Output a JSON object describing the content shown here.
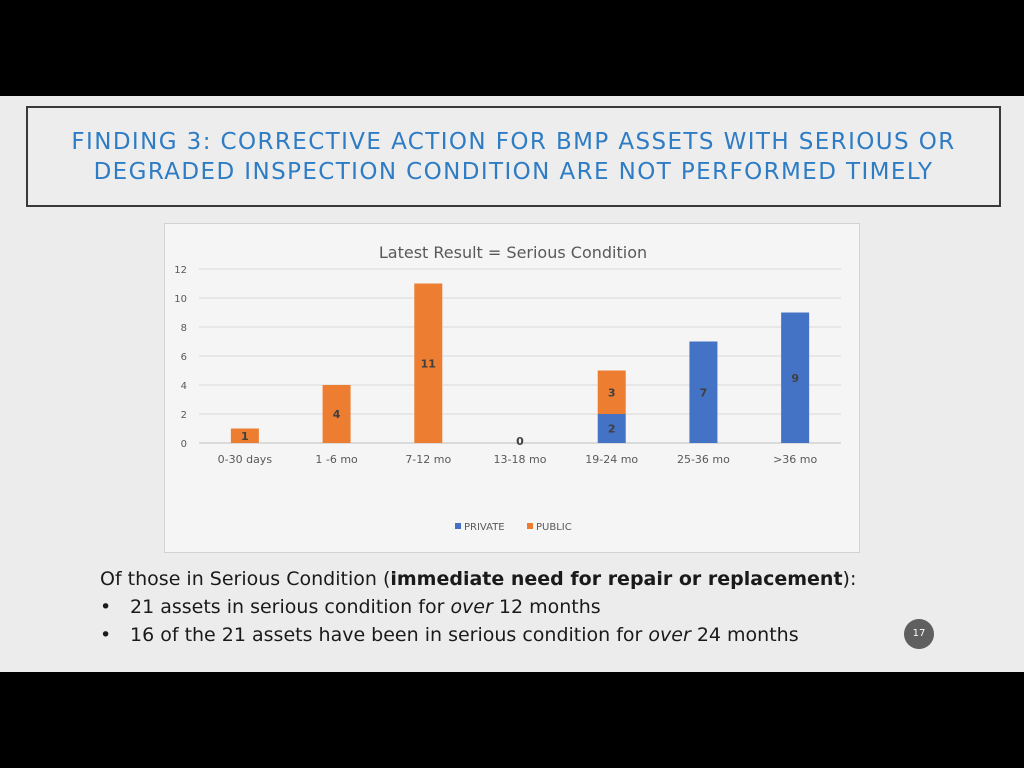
{
  "slide": {
    "title_line1": "FINDING 3:  CORRECTIVE ACTION FOR BMP ASSETS WITH SERIOUS OR",
    "title_line2": "DEGRADED INSPECTION CONDITION ARE NOT PERFORMED TIMELY",
    "summary_lead_pre": "Of those in Serious Condition (",
    "summary_lead_bold": "immediate need for repair or replacement",
    "summary_lead_post": "):",
    "bullet1_pre": "21 assets in serious condition for ",
    "bullet1_em": "over",
    "bullet1_post": " 12 months",
    "bullet2_pre": "16 of the 21 assets have been in serious condition for ",
    "bullet2_em": "over",
    "bullet2_post": " 24 months",
    "page_number": "17"
  },
  "chart_data": {
    "type": "bar",
    "stacked": true,
    "title": "Latest Result = Serious Condition",
    "categories": [
      "0-30 days",
      "1 -6 mo",
      "7-12 mo",
      "13-18 mo",
      "19-24 mo",
      "25-36 mo",
      ">36 mo"
    ],
    "series": [
      {
        "name": "PRIVATE",
        "color": "#4472c4",
        "values": [
          0,
          0,
          0,
          0,
          2,
          7,
          9
        ]
      },
      {
        "name": "PUBLIC",
        "color": "#ed7d31",
        "values": [
          1,
          4,
          11,
          0,
          3,
          0,
          0
        ]
      }
    ],
    "ylim": [
      0,
      12
    ],
    "yticks": [
      "0",
      "2",
      "4",
      "6",
      "8",
      "10",
      "12"
    ],
    "grid": true,
    "legend": "bottom",
    "zero_label": "0"
  }
}
